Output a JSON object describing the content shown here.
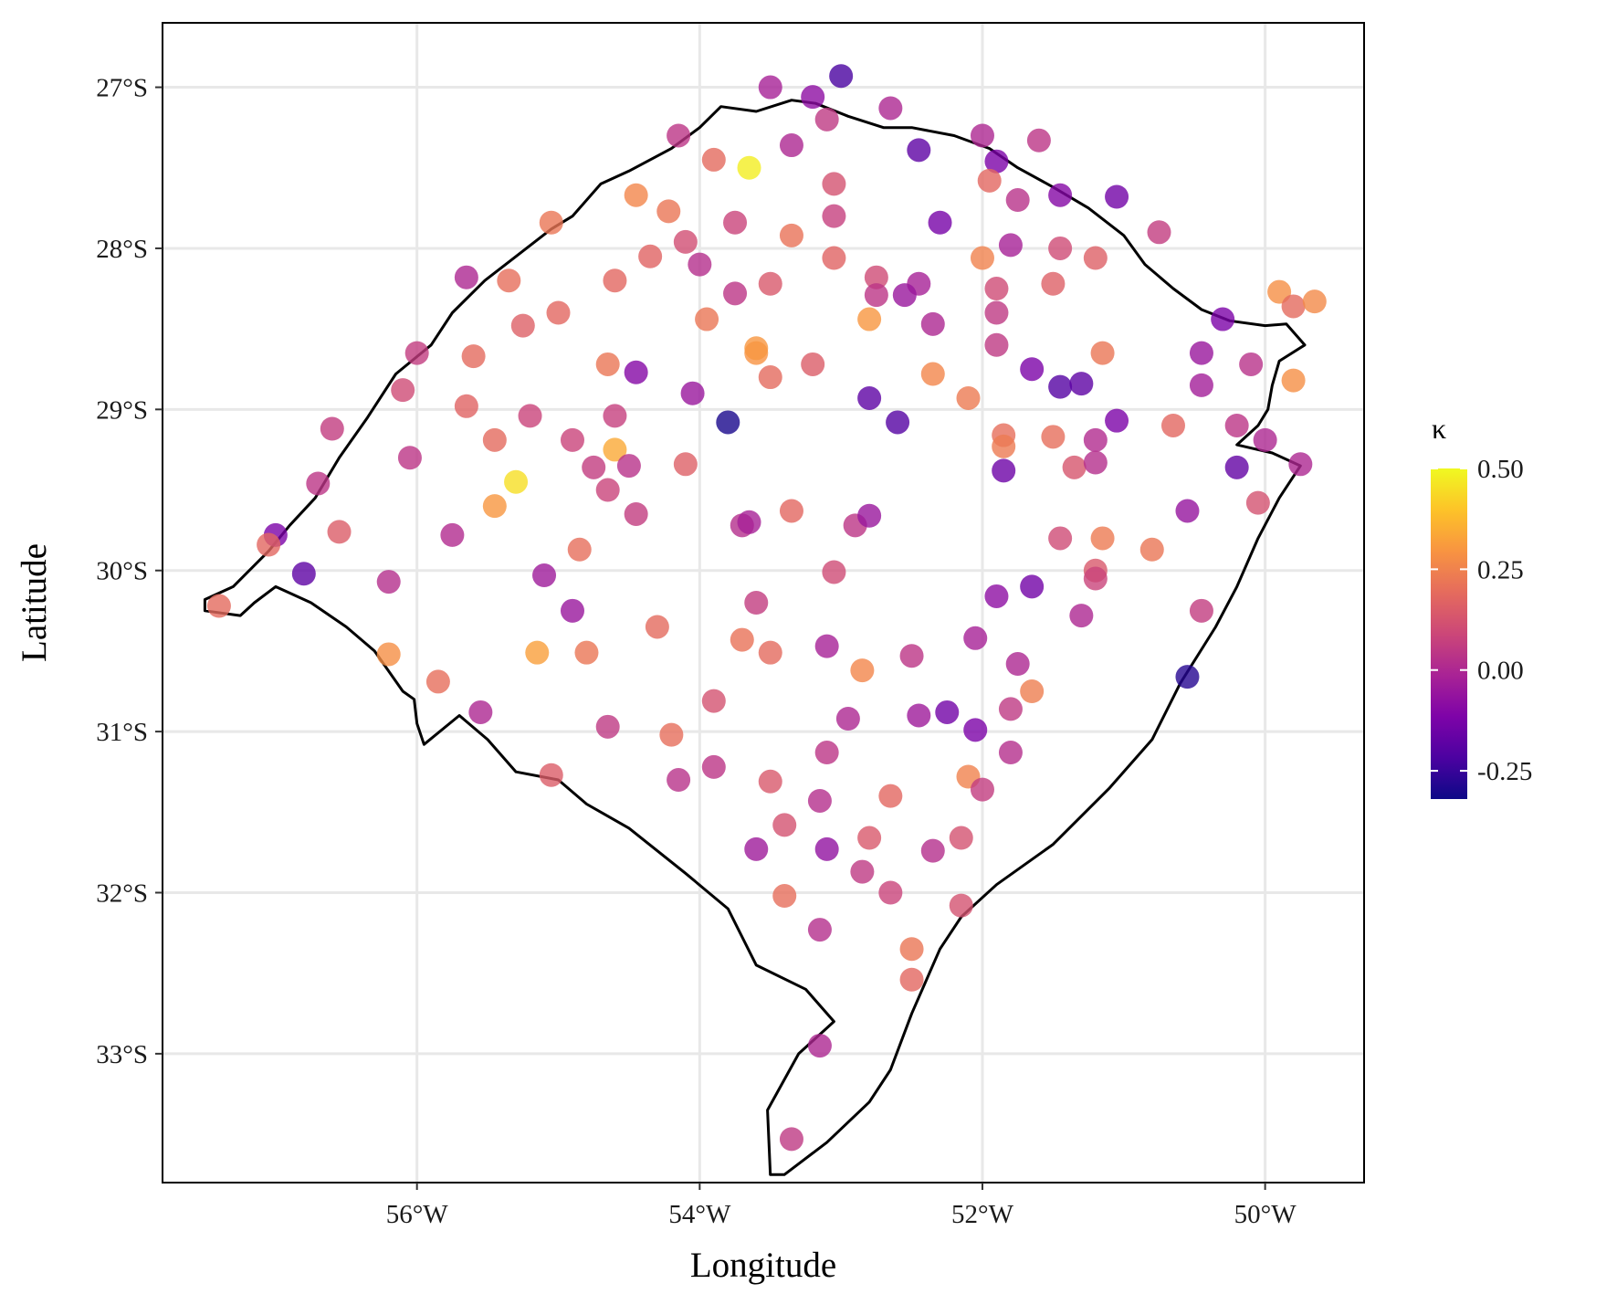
{
  "chart_data": {
    "type": "scatter",
    "xlabel": "Longitude",
    "ylabel": "Latitude",
    "xlim": [
      -57.8,
      -49.3
    ],
    "ylim": [
      -33.8,
      -26.6
    ],
    "x_ticks": [
      {
        "value": -56,
        "label": "56°W"
      },
      {
        "value": -54,
        "label": "54°W"
      },
      {
        "value": -52,
        "label": "52°W"
      },
      {
        "value": -50,
        "label": "50°W"
      }
    ],
    "y_ticks": [
      {
        "value": -27,
        "label": "27°S"
      },
      {
        "value": -28,
        "label": "28°S"
      },
      {
        "value": -29,
        "label": "29°S"
      },
      {
        "value": -30,
        "label": "30°S"
      },
      {
        "value": -31,
        "label": "31°S"
      },
      {
        "value": -32,
        "label": "32°S"
      },
      {
        "value": -33,
        "label": "33°S"
      }
    ],
    "legend": {
      "title": "κ",
      "placement": "right",
      "colormap": "plasma",
      "range": [
        -0.32,
        0.5
      ],
      "ticks": [
        {
          "value": 0.5,
          "label": "0.50"
        },
        {
          "value": 0.25,
          "label": "0.25"
        },
        {
          "value": 0.0,
          "label": "0.00"
        },
        {
          "value": -0.25,
          "label": "-0.25"
        }
      ]
    },
    "grid": true,
    "boundary": [
      [
        -57.5,
        -30.18
      ],
      [
        -57.3,
        -30.1
      ],
      [
        -57.05,
        -29.88
      ],
      [
        -56.9,
        -29.72
      ],
      [
        -56.72,
        -29.55
      ],
      [
        -56.55,
        -29.3
      ],
      [
        -56.35,
        -29.05
      ],
      [
        -56.15,
        -28.78
      ],
      [
        -55.9,
        -28.6
      ],
      [
        -55.75,
        -28.4
      ],
      [
        -55.52,
        -28.2
      ],
      [
        -55.3,
        -28.05
      ],
      [
        -55.05,
        -27.88
      ],
      [
        -54.9,
        -27.8
      ],
      [
        -54.7,
        -27.6
      ],
      [
        -54.5,
        -27.52
      ],
      [
        -54.2,
        -27.38
      ],
      [
        -54.0,
        -27.25
      ],
      [
        -53.85,
        -27.12
      ],
      [
        -53.6,
        -27.15
      ],
      [
        -53.35,
        -27.08
      ],
      [
        -53.18,
        -27.1
      ],
      [
        -52.95,
        -27.18
      ],
      [
        -52.7,
        -27.25
      ],
      [
        -52.5,
        -27.25
      ],
      [
        -52.2,
        -27.3
      ],
      [
        -51.95,
        -27.38
      ],
      [
        -51.75,
        -27.5
      ],
      [
        -51.5,
        -27.62
      ],
      [
        -51.25,
        -27.75
      ],
      [
        -51.0,
        -27.92
      ],
      [
        -50.85,
        -28.1
      ],
      [
        -50.65,
        -28.25
      ],
      [
        -50.45,
        -28.38
      ],
      [
        -50.25,
        -28.45
      ],
      [
        -50.0,
        -28.48
      ],
      [
        -49.85,
        -28.47
      ],
      [
        -49.72,
        -28.6
      ],
      [
        -49.9,
        -28.7
      ],
      [
        -49.95,
        -28.85
      ],
      [
        -49.98,
        -29.0
      ],
      [
        -50.05,
        -29.1
      ],
      [
        -50.2,
        -29.22
      ],
      [
        -50.05,
        -29.25
      ],
      [
        -49.95,
        -29.27
      ],
      [
        -49.75,
        -29.35
      ],
      [
        -49.9,
        -29.55
      ],
      [
        -50.05,
        -29.8
      ],
      [
        -50.2,
        -30.1
      ],
      [
        -50.35,
        -30.35
      ],
      [
        -50.6,
        -30.7
      ],
      [
        -50.8,
        -31.05
      ],
      [
        -51.1,
        -31.35
      ],
      [
        -51.5,
        -31.7
      ],
      [
        -51.9,
        -31.95
      ],
      [
        -52.15,
        -32.15
      ],
      [
        -52.3,
        -32.35
      ],
      [
        -52.5,
        -32.75
      ],
      [
        -52.65,
        -33.1
      ],
      [
        -52.8,
        -33.3
      ],
      [
        -53.1,
        -33.55
      ],
      [
        -53.4,
        -33.75
      ],
      [
        -53.5,
        -33.75
      ],
      [
        -53.52,
        -33.35
      ],
      [
        -53.3,
        -33.0
      ],
      [
        -53.05,
        -32.8
      ],
      [
        -53.25,
        -32.6
      ],
      [
        -53.6,
        -32.45
      ],
      [
        -53.8,
        -32.1
      ],
      [
        -54.1,
        -31.88
      ],
      [
        -54.5,
        -31.6
      ],
      [
        -54.8,
        -31.45
      ],
      [
        -55.0,
        -31.3
      ],
      [
        -55.3,
        -31.25
      ],
      [
        -55.5,
        -31.05
      ],
      [
        -55.7,
        -30.9
      ],
      [
        -55.95,
        -31.08
      ],
      [
        -56.0,
        -30.95
      ],
      [
        -56.02,
        -30.8
      ],
      [
        -56.1,
        -30.75
      ],
      [
        -56.3,
        -30.5
      ],
      [
        -56.5,
        -30.35
      ],
      [
        -56.75,
        -30.2
      ],
      [
        -57.0,
        -30.1
      ],
      [
        -57.15,
        -30.2
      ],
      [
        -57.25,
        -30.28
      ],
      [
        -57.5,
        -30.25
      ]
    ],
    "points": [
      {
        "x": -53.5,
        "y": -27.0,
        "k": -0.02
      },
      {
        "x": -53.0,
        "y": -26.93,
        "k": -0.22
      },
      {
        "x": -53.2,
        "y": -27.06,
        "k": -0.08
      },
      {
        "x": -53.1,
        "y": -27.2,
        "k": 0.05
      },
      {
        "x": -52.65,
        "y": -27.13,
        "k": 0.0
      },
      {
        "x": -54.15,
        "y": -27.3,
        "k": 0.04
      },
      {
        "x": -53.35,
        "y": -27.36,
        "k": 0.0
      },
      {
        "x": -52.45,
        "y": -27.39,
        "k": -0.18
      },
      {
        "x": -52.0,
        "y": -27.3,
        "k": 0.0
      },
      {
        "x": -51.6,
        "y": -27.33,
        "k": 0.04
      },
      {
        "x": -51.9,
        "y": -27.46,
        "k": -0.12
      },
      {
        "x": -53.9,
        "y": -27.45,
        "k": 0.19
      },
      {
        "x": -53.65,
        "y": -27.5,
        "k": 0.48
      },
      {
        "x": -54.45,
        "y": -27.67,
        "k": 0.26
      },
      {
        "x": -54.22,
        "y": -27.77,
        "k": 0.22
      },
      {
        "x": -53.05,
        "y": -27.6,
        "k": 0.12
      },
      {
        "x": -51.95,
        "y": -27.58,
        "k": 0.18
      },
      {
        "x": -51.75,
        "y": -27.7,
        "k": 0.03
      },
      {
        "x": -51.45,
        "y": -27.67,
        "k": -0.1
      },
      {
        "x": -51.05,
        "y": -27.68,
        "k": -0.14
      },
      {
        "x": -50.75,
        "y": -27.9,
        "k": 0.06
      },
      {
        "x": -55.05,
        "y": -27.84,
        "k": 0.22
      },
      {
        "x": -53.75,
        "y": -27.84,
        "k": 0.08
      },
      {
        "x": -53.05,
        "y": -27.8,
        "k": 0.07
      },
      {
        "x": -52.3,
        "y": -27.84,
        "k": -0.13
      },
      {
        "x": -53.35,
        "y": -27.92,
        "k": 0.21
      },
      {
        "x": -54.1,
        "y": -27.96,
        "k": 0.11
      },
      {
        "x": -54.35,
        "y": -28.05,
        "k": 0.17
      },
      {
        "x": -53.05,
        "y": -28.06,
        "k": 0.17
      },
      {
        "x": -52.0,
        "y": -28.06,
        "k": 0.25
      },
      {
        "x": -51.8,
        "y": -27.98,
        "k": -0.02
      },
      {
        "x": -51.45,
        "y": -28.0,
        "k": 0.1
      },
      {
        "x": -51.2,
        "y": -28.06,
        "k": 0.16
      },
      {
        "x": -54.0,
        "y": -28.1,
        "k": 0.02
      },
      {
        "x": -55.65,
        "y": -28.18,
        "k": 0.0
      },
      {
        "x": -55.35,
        "y": -28.2,
        "k": 0.2
      },
      {
        "x": -54.6,
        "y": -28.2,
        "k": 0.18
      },
      {
        "x": -53.5,
        "y": -28.22,
        "k": 0.14
      },
      {
        "x": -52.75,
        "y": -28.18,
        "k": 0.1
      },
      {
        "x": -52.45,
        "y": -28.22,
        "k": -0.02
      },
      {
        "x": -51.9,
        "y": -28.25,
        "k": 0.1
      },
      {
        "x": -51.5,
        "y": -28.22,
        "k": 0.16
      },
      {
        "x": -53.75,
        "y": -28.28,
        "k": 0.04
      },
      {
        "x": -52.75,
        "y": -28.29,
        "k": 0.04
      },
      {
        "x": -52.55,
        "y": -28.29,
        "k": -0.05
      },
      {
        "x": -55.25,
        "y": -28.48,
        "k": 0.16
      },
      {
        "x": -55.0,
        "y": -28.4,
        "k": 0.18
      },
      {
        "x": -53.95,
        "y": -28.44,
        "k": 0.22
      },
      {
        "x": -52.8,
        "y": -28.44,
        "k": 0.3
      },
      {
        "x": -52.35,
        "y": -28.47,
        "k": 0.0
      },
      {
        "x": -51.9,
        "y": -28.4,
        "k": 0.05
      },
      {
        "x": -50.3,
        "y": -28.44,
        "k": -0.12
      },
      {
        "x": -49.9,
        "y": -28.27,
        "k": 0.28
      },
      {
        "x": -49.8,
        "y": -28.36,
        "k": 0.19
      },
      {
        "x": -49.65,
        "y": -28.33,
        "k": 0.27
      },
      {
        "x": -56.0,
        "y": -28.65,
        "k": 0.06
      },
      {
        "x": -55.6,
        "y": -28.67,
        "k": 0.19
      },
      {
        "x": -53.6,
        "y": -28.65,
        "k": 0.29
      },
      {
        "x": -53.6,
        "y": -28.62,
        "k": 0.3
      },
      {
        "x": -51.9,
        "y": -28.6,
        "k": 0.05
      },
      {
        "x": -51.15,
        "y": -28.65,
        "k": 0.22
      },
      {
        "x": -50.45,
        "y": -28.65,
        "k": -0.05
      },
      {
        "x": -54.65,
        "y": -28.72,
        "k": 0.22
      },
      {
        "x": -53.2,
        "y": -28.72,
        "k": 0.15
      },
      {
        "x": -54.45,
        "y": -28.77,
        "k": -0.1
      },
      {
        "x": -53.5,
        "y": -28.8,
        "k": 0.19
      },
      {
        "x": -52.35,
        "y": -28.78,
        "k": 0.26
      },
      {
        "x": -51.65,
        "y": -28.75,
        "k": -0.12
      },
      {
        "x": -51.45,
        "y": -28.86,
        "k": -0.2
      },
      {
        "x": -51.3,
        "y": -28.84,
        "k": -0.18
      },
      {
        "x": -50.45,
        "y": -28.85,
        "k": -0.03
      },
      {
        "x": -50.1,
        "y": -28.72,
        "k": 0.03
      },
      {
        "x": -49.8,
        "y": -28.82,
        "k": 0.28
      },
      {
        "x": -56.1,
        "y": -28.88,
        "k": 0.1
      },
      {
        "x": -54.05,
        "y": -28.9,
        "k": -0.05
      },
      {
        "x": -52.8,
        "y": -28.93,
        "k": -0.18
      },
      {
        "x": -52.1,
        "y": -28.93,
        "k": 0.23
      },
      {
        "x": -55.65,
        "y": -28.98,
        "k": 0.17
      },
      {
        "x": -55.2,
        "y": -29.04,
        "k": 0.08
      },
      {
        "x": -54.6,
        "y": -29.04,
        "k": 0.07
      },
      {
        "x": -53.8,
        "y": -29.08,
        "k": -0.3
      },
      {
        "x": -52.6,
        "y": -29.08,
        "k": -0.2
      },
      {
        "x": -51.05,
        "y": -29.07,
        "k": -0.12
      },
      {
        "x": -50.65,
        "y": -29.1,
        "k": 0.18
      },
      {
        "x": -50.2,
        "y": -29.1,
        "k": 0.04
      },
      {
        "x": -56.6,
        "y": -29.12,
        "k": 0.06
      },
      {
        "x": -55.45,
        "y": -29.19,
        "k": 0.19
      },
      {
        "x": -54.9,
        "y": -29.19,
        "k": 0.08
      },
      {
        "x": -51.85,
        "y": -29.16,
        "k": 0.2
      },
      {
        "x": -51.85,
        "y": -29.23,
        "k": 0.23
      },
      {
        "x": -51.5,
        "y": -29.17,
        "k": 0.2
      },
      {
        "x": -51.2,
        "y": -29.19,
        "k": 0.01
      },
      {
        "x": -50.0,
        "y": -29.19,
        "k": 0.0
      },
      {
        "x": -54.6,
        "y": -29.25,
        "k": 0.34
      },
      {
        "x": -56.05,
        "y": -29.3,
        "k": 0.04
      },
      {
        "x": -54.75,
        "y": -29.36,
        "k": 0.06
      },
      {
        "x": -54.5,
        "y": -29.35,
        "k": 0.03
      },
      {
        "x": -54.1,
        "y": -29.34,
        "k": 0.16
      },
      {
        "x": -51.85,
        "y": -29.38,
        "k": -0.15
      },
      {
        "x": -51.35,
        "y": -29.36,
        "k": 0.13
      },
      {
        "x": -51.2,
        "y": -29.33,
        "k": 0.02
      },
      {
        "x": -50.2,
        "y": -29.36,
        "k": -0.17
      },
      {
        "x": -49.75,
        "y": -29.34,
        "k": 0.0
      },
      {
        "x": -55.3,
        "y": -29.45,
        "k": 0.45
      },
      {
        "x": -56.7,
        "y": -29.46,
        "k": 0.04
      },
      {
        "x": -54.65,
        "y": -29.5,
        "k": 0.08
      },
      {
        "x": -55.45,
        "y": -29.6,
        "k": 0.3
      },
      {
        "x": -53.35,
        "y": -29.63,
        "k": 0.18
      },
      {
        "x": -54.45,
        "y": -29.65,
        "k": 0.06
      },
      {
        "x": -50.55,
        "y": -29.63,
        "k": -0.06
      },
      {
        "x": -50.05,
        "y": -29.58,
        "k": 0.12
      },
      {
        "x": -53.7,
        "y": -29.72,
        "k": 0.02
      },
      {
        "x": -53.65,
        "y": -29.7,
        "k": -0.02
      },
      {
        "x": -52.9,
        "y": -29.72,
        "k": 0.04
      },
      {
        "x": -52.8,
        "y": -29.66,
        "k": -0.05
      },
      {
        "x": -56.55,
        "y": -29.76,
        "k": 0.15
      },
      {
        "x": -57.0,
        "y": -29.78,
        "k": -0.12
      },
      {
        "x": -57.05,
        "y": -29.84,
        "k": 0.18
      },
      {
        "x": -55.75,
        "y": -29.78,
        "k": 0.01
      },
      {
        "x": -51.45,
        "y": -29.8,
        "k": 0.1
      },
      {
        "x": -51.15,
        "y": -29.8,
        "k": 0.23
      },
      {
        "x": -50.8,
        "y": -29.87,
        "k": 0.22
      },
      {
        "x": -54.85,
        "y": -29.87,
        "k": 0.2
      },
      {
        "x": -56.8,
        "y": -30.02,
        "k": -0.18
      },
      {
        "x": -55.1,
        "y": -30.03,
        "k": -0.04
      },
      {
        "x": -53.05,
        "y": -30.01,
        "k": 0.1
      },
      {
        "x": -51.2,
        "y": -30.0,
        "k": 0.14
      },
      {
        "x": -51.2,
        "y": -30.05,
        "k": 0.08
      },
      {
        "x": -56.2,
        "y": -30.07,
        "k": 0.02
      },
      {
        "x": -51.65,
        "y": -30.1,
        "k": -0.14
      },
      {
        "x": -51.9,
        "y": -30.16,
        "k": -0.08
      },
      {
        "x": -53.6,
        "y": -30.2,
        "k": 0.06
      },
      {
        "x": -57.4,
        "y": -30.22,
        "k": 0.19
      },
      {
        "x": -54.9,
        "y": -30.25,
        "k": -0.05
      },
      {
        "x": -50.45,
        "y": -30.25,
        "k": 0.06
      },
      {
        "x": -51.3,
        "y": -30.28,
        "k": 0.0
      },
      {
        "x": -54.3,
        "y": -30.35,
        "k": 0.19
      },
      {
        "x": -52.05,
        "y": -30.42,
        "k": -0.02
      },
      {
        "x": -53.7,
        "y": -30.43,
        "k": 0.21
      },
      {
        "x": -53.1,
        "y": -30.47,
        "k": -0.02
      },
      {
        "x": -56.2,
        "y": -30.52,
        "k": 0.28
      },
      {
        "x": -55.15,
        "y": -30.51,
        "k": 0.32
      },
      {
        "x": -54.8,
        "y": -30.51,
        "k": 0.22
      },
      {
        "x": -53.5,
        "y": -30.51,
        "k": 0.19
      },
      {
        "x": -52.5,
        "y": -30.53,
        "k": 0.04
      },
      {
        "x": -51.75,
        "y": -30.58,
        "k": 0.0
      },
      {
        "x": -52.85,
        "y": -30.62,
        "k": 0.26
      },
      {
        "x": -50.55,
        "y": -30.66,
        "k": -0.28
      },
      {
        "x": -55.85,
        "y": -30.69,
        "k": 0.2
      },
      {
        "x": -51.65,
        "y": -30.75,
        "k": 0.24
      },
      {
        "x": -53.9,
        "y": -30.81,
        "k": 0.12
      },
      {
        "x": -51.8,
        "y": -30.86,
        "k": 0.05
      },
      {
        "x": -55.55,
        "y": -30.88,
        "k": 0.0
      },
      {
        "x": -52.45,
        "y": -30.9,
        "k": -0.04
      },
      {
        "x": -52.25,
        "y": -30.88,
        "k": -0.14
      },
      {
        "x": -52.95,
        "y": -30.92,
        "k": 0.0
      },
      {
        "x": -54.65,
        "y": -30.97,
        "k": 0.05
      },
      {
        "x": -52.05,
        "y": -30.99,
        "k": -0.12
      },
      {
        "x": -54.2,
        "y": -31.02,
        "k": 0.2
      },
      {
        "x": -53.1,
        "y": -31.13,
        "k": 0.04
      },
      {
        "x": -51.8,
        "y": -31.13,
        "k": 0.02
      },
      {
        "x": -53.9,
        "y": -31.22,
        "k": 0.04
      },
      {
        "x": -55.05,
        "y": -31.27,
        "k": 0.15
      },
      {
        "x": -54.15,
        "y": -31.3,
        "k": 0.03
      },
      {
        "x": -53.5,
        "y": -31.31,
        "k": 0.14
      },
      {
        "x": -52.1,
        "y": -31.28,
        "k": 0.25
      },
      {
        "x": -52.0,
        "y": -31.36,
        "k": 0.06
      },
      {
        "x": -52.65,
        "y": -31.4,
        "k": 0.18
      },
      {
        "x": -53.15,
        "y": -31.43,
        "k": 0.02
      },
      {
        "x": -53.4,
        "y": -31.58,
        "k": 0.12
      },
      {
        "x": -52.8,
        "y": -31.66,
        "k": 0.14
      },
      {
        "x": -52.15,
        "y": -31.66,
        "k": 0.12
      },
      {
        "x": -53.6,
        "y": -31.73,
        "k": -0.04
      },
      {
        "x": -53.1,
        "y": -31.73,
        "k": -0.07
      },
      {
        "x": -52.35,
        "y": -31.74,
        "k": 0.02
      },
      {
        "x": -52.85,
        "y": -31.87,
        "k": 0.05
      },
      {
        "x": -52.65,
        "y": -32.0,
        "k": 0.08
      },
      {
        "x": -53.4,
        "y": -32.02,
        "k": 0.2
      },
      {
        "x": -52.15,
        "y": -32.08,
        "k": 0.12
      },
      {
        "x": -53.15,
        "y": -32.23,
        "k": 0.02
      },
      {
        "x": -52.5,
        "y": -32.35,
        "k": 0.22
      },
      {
        "x": -52.5,
        "y": -32.54,
        "k": 0.18
      },
      {
        "x": -53.15,
        "y": -32.95,
        "k": 0.0
      },
      {
        "x": -53.35,
        "y": -33.53,
        "k": 0.05
      }
    ]
  }
}
